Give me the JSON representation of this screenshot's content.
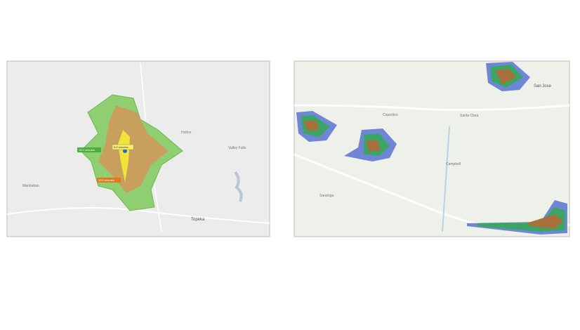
{
  "left_map": {
    "labels": [
      "15.0 minutes",
      "10.0 minutes",
      "5.0 minutes"
    ],
    "places": [
      "Manhattan",
      "Topeka",
      "Holton",
      "Valley Falls"
    ]
  },
  "right_map": {
    "places": [
      "San Jose",
      "Campbell",
      "Saratoga",
      "Cupertino",
      "Santa Clara"
    ]
  }
}
